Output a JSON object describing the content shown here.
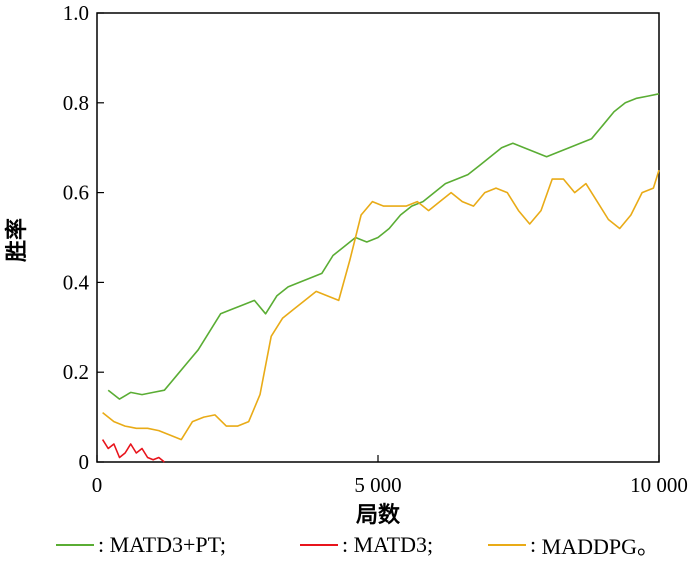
{
  "chart_data": {
    "type": "line",
    "xlabel": "局数",
    "ylabel": "胜率",
    "xlim": [
      0,
      10000
    ],
    "ylim": [
      0,
      1.0
    ],
    "x_ticks": [
      {
        "value": 0,
        "label": "0"
      },
      {
        "value": 5000,
        "label": "5 000"
      },
      {
        "value": 10000,
        "label": "10 000"
      }
    ],
    "y_ticks": [
      {
        "value": 0,
        "label": "0"
      },
      {
        "value": 0.2,
        "label": "0.2"
      },
      {
        "value": 0.4,
        "label": "0.4"
      },
      {
        "value": 0.6,
        "label": "0.6"
      },
      {
        "value": 0.8,
        "label": "0.8"
      },
      {
        "value": 1.0,
        "label": "1.0"
      }
    ],
    "grid": false,
    "legend_position": "bottom",
    "series": [
      {
        "name": "MATD3+PT",
        "legend_label": "MATD3+PT;",
        "color": "#5aad34",
        "x": [
          200,
          400,
          600,
          800,
          1000,
          1200,
          1400,
          1600,
          1800,
          2000,
          2200,
          2400,
          2600,
          2800,
          3000,
          3200,
          3400,
          3600,
          3800,
          4000,
          4200,
          4400,
          4600,
          4800,
          5000,
          5200,
          5400,
          5600,
          5800,
          6000,
          6200,
          6400,
          6600,
          6800,
          7000,
          7200,
          7400,
          7600,
          7800,
          8000,
          8200,
          8400,
          8600,
          8800,
          9000,
          9200,
          9400,
          9600,
          9800,
          10000
        ],
        "values": [
          0.16,
          0.14,
          0.155,
          0.15,
          0.155,
          0.16,
          0.19,
          0.22,
          0.25,
          0.29,
          0.33,
          0.34,
          0.35,
          0.36,
          0.33,
          0.37,
          0.39,
          0.4,
          0.41,
          0.42,
          0.46,
          0.48,
          0.5,
          0.49,
          0.5,
          0.52,
          0.55,
          0.57,
          0.58,
          0.6,
          0.62,
          0.63,
          0.64,
          0.66,
          0.68,
          0.7,
          0.71,
          0.7,
          0.69,
          0.68,
          0.69,
          0.7,
          0.71,
          0.72,
          0.75,
          0.78,
          0.8,
          0.81,
          0.815,
          0.82
        ]
      },
      {
        "name": "MATD3",
        "legend_label": "MATD3;",
        "color": "#e8141c",
        "x": [
          100,
          200,
          300,
          400,
          500,
          600,
          700,
          800,
          900,
          1000,
          1100,
          1200
        ],
        "values": [
          0.05,
          0.03,
          0.04,
          0.01,
          0.02,
          0.04,
          0.02,
          0.03,
          0.01,
          0.005,
          0.01,
          0.0
        ]
      },
      {
        "name": "MADDPG",
        "legend_label": "MADDPG。",
        "color": "#e9ab17",
        "x": [
          100,
          300,
          500,
          700,
          900,
          1100,
          1300,
          1500,
          1700,
          1900,
          2100,
          2300,
          2500,
          2700,
          2900,
          3100,
          3300,
          3500,
          3700,
          3900,
          4100,
          4300,
          4500,
          4700,
          4900,
          5100,
          5300,
          5500,
          5700,
          5900,
          6100,
          6300,
          6500,
          6700,
          6900,
          7100,
          7300,
          7500,
          7700,
          7900,
          8100,
          8300,
          8500,
          8700,
          8900,
          9100,
          9300,
          9500,
          9700,
          9900,
          10000
        ],
        "values": [
          0.11,
          0.09,
          0.08,
          0.075,
          0.075,
          0.07,
          0.06,
          0.05,
          0.09,
          0.1,
          0.105,
          0.08,
          0.08,
          0.09,
          0.15,
          0.28,
          0.32,
          0.34,
          0.36,
          0.38,
          0.37,
          0.36,
          0.45,
          0.55,
          0.58,
          0.57,
          0.57,
          0.57,
          0.58,
          0.56,
          0.58,
          0.6,
          0.58,
          0.57,
          0.6,
          0.61,
          0.6,
          0.56,
          0.53,
          0.56,
          0.63,
          0.63,
          0.6,
          0.62,
          0.58,
          0.54,
          0.52,
          0.55,
          0.6,
          0.61,
          0.65
        ]
      }
    ]
  }
}
